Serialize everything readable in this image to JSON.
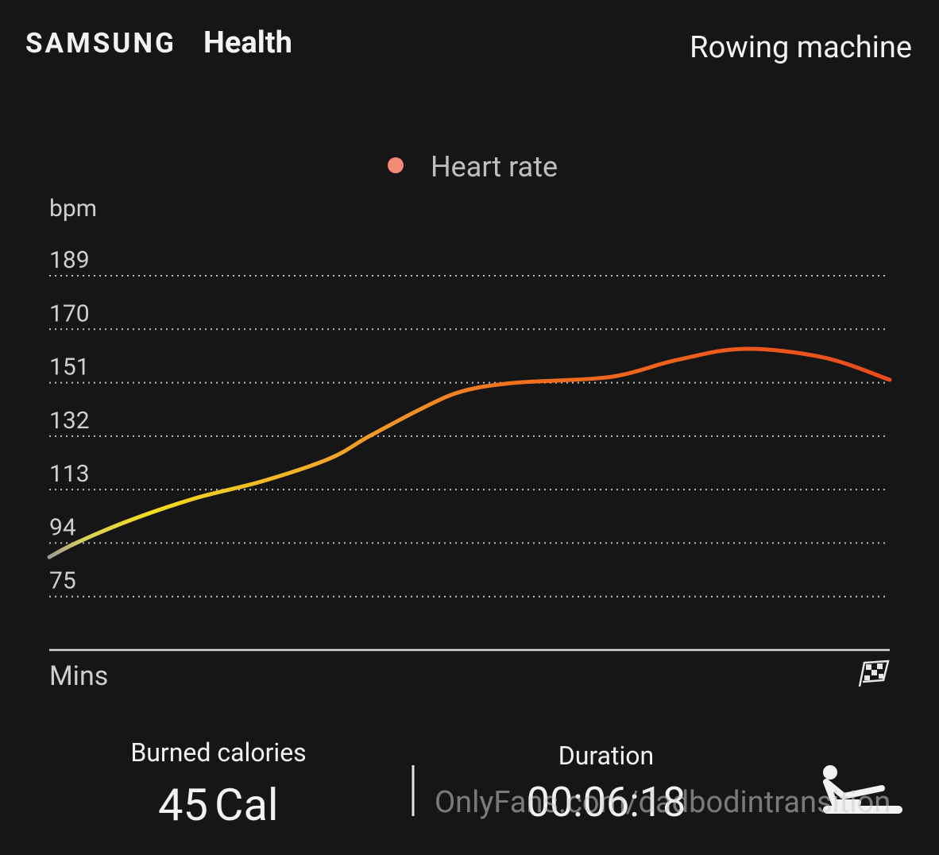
{
  "header": {
    "brand": "SAMSUNG",
    "app": "Health",
    "activity": "Rowing machine"
  },
  "chart_data": {
    "type": "line",
    "ylabel": "bpm",
    "xlabel": "Mins",
    "x": [
      0,
      0.2,
      0.6,
      1.1,
      1.6,
      2.1,
      2.4,
      2.8,
      3.1,
      3.5,
      4.2,
      4.7,
      5.2,
      5.8,
      6.3
    ],
    "series": [
      {
        "name": "Heart rate",
        "color": "#f28b73",
        "values": [
          89,
          94,
          102,
          110,
          116,
          124,
          132,
          142,
          148,
          151,
          153,
          159,
          163,
          160,
          152
        ]
      }
    ],
    "xlim": [
      0,
      6.3
    ],
    "ylim": [
      56,
      189
    ],
    "yticks": [
      75,
      94,
      113,
      132,
      151,
      170,
      189
    ],
    "grid": true
  },
  "summary": {
    "calories_label": "Burned calories",
    "calories_value": "45",
    "calories_unit": "Cal",
    "duration_label": "Duration",
    "duration_value": "00:06:18"
  },
  "watermark": "OnlyFans.com/dadbodintransition"
}
